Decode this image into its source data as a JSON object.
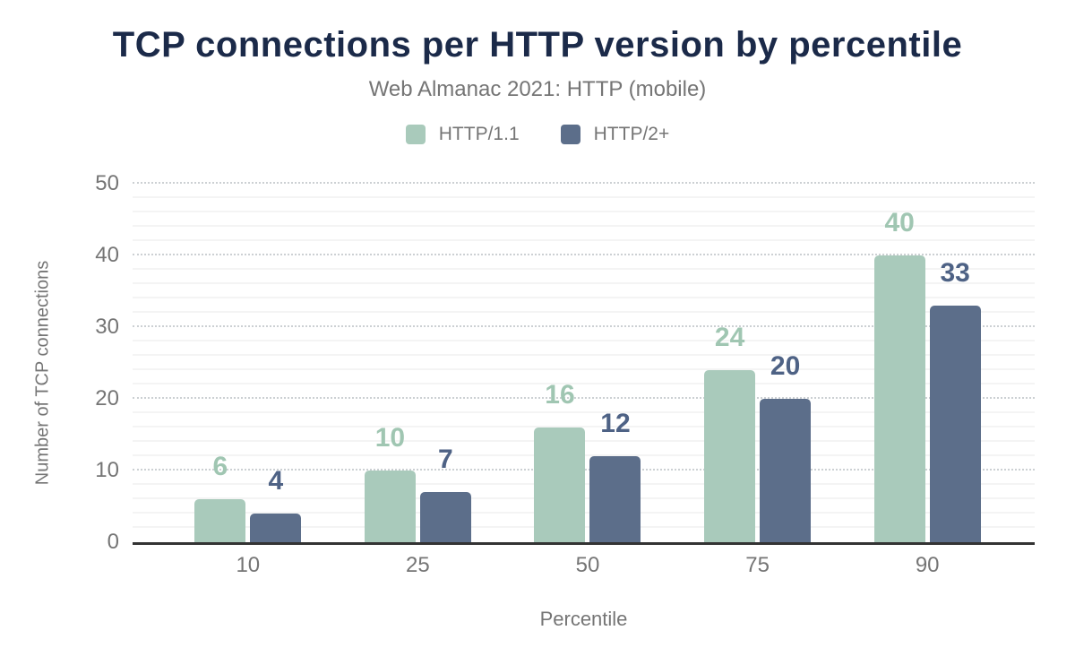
{
  "header": {
    "title": "TCP connections per HTTP version by percentile",
    "subtitle": "Web Almanac 2021: HTTP (mobile)"
  },
  "chart_data": {
    "type": "bar",
    "title": "TCP connections per HTTP version by percentile",
    "subtitle": "Web Almanac 2021: HTTP (mobile)",
    "categories": [
      "10",
      "25",
      "50",
      "75",
      "90"
    ],
    "series": [
      {
        "name": "HTTP/1.1",
        "values": [
          6,
          10,
          16,
          24,
          40
        ],
        "color": "#a9cabb",
        "label_color": "#a0c6b2"
      },
      {
        "name": "HTTP/2+",
        "values": [
          4,
          7,
          12,
          20,
          33
        ],
        "color": "#5c6e8a",
        "label_color": "#4e6285"
      }
    ],
    "xlabel": "Percentile",
    "ylabel": "Number of TCP connections",
    "ylim": [
      0,
      50
    ],
    "yticks": [
      0,
      10,
      20,
      30,
      40,
      50
    ],
    "ytick_step": 10,
    "minor_gridline_step": 2,
    "grid": "major horizontal dotted, minor horizontal solid",
    "legend_position": "top center",
    "data_labels": "above bars, colored per series"
  },
  "style": {
    "title_color": "#1b2a49",
    "text_gray": "#757575",
    "axis_line_color": "#333333",
    "major_gridline_color": "#ccd0d3",
    "minor_gridline_color": "#f4f4f4",
    "background": "#ffffff"
  }
}
